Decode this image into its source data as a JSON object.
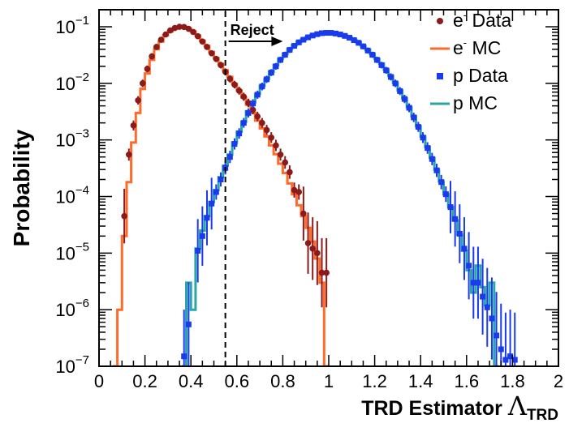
{
  "chart_data": {
    "type": "line",
    "title": "",
    "xlabel": {
      "main": "TRD Estimator ",
      "symbol": "Λ",
      "sub": "TRD"
    },
    "ylabel": "Probability",
    "xlim": [
      0,
      2
    ],
    "ylim": [
      1e-07,
      0.2
    ],
    "yscale": "log",
    "grid": false,
    "legend_position": "top-right",
    "x_ticks": [
      {
        "value": 0,
        "label": "0"
      },
      {
        "value": 0.2,
        "label": "0.2"
      },
      {
        "value": 0.4,
        "label": "0.4"
      },
      {
        "value": 0.6,
        "label": "0.6"
      },
      {
        "value": 0.8,
        "label": "0.8"
      },
      {
        "value": 1,
        "label": "1"
      },
      {
        "value": 1.2,
        "label": "1.2"
      },
      {
        "value": 1.4,
        "label": "1.4"
      },
      {
        "value": 1.6,
        "label": "1.6"
      },
      {
        "value": 1.8,
        "label": "1.8"
      },
      {
        "value": 2,
        "label": "2"
      }
    ],
    "y_ticks": [
      {
        "exp": -7,
        "base": "10",
        "sup": "−7"
      },
      {
        "exp": -6,
        "base": "10",
        "sup": "−6"
      },
      {
        "exp": -5,
        "base": "10",
        "sup": "−5"
      },
      {
        "exp": -4,
        "base": "10",
        "sup": "−4"
      },
      {
        "exp": -3,
        "base": "10",
        "sup": "−3"
      },
      {
        "exp": -2,
        "base": "10",
        "sup": "−2"
      },
      {
        "exp": -1,
        "base": "10",
        "sup": "−1"
      }
    ],
    "cut": {
      "x": 0.55,
      "label": "Reject",
      "arrow_to_x": 0.8
    },
    "colors": {
      "e_data": "#8b1a1a",
      "e_mc": "#ff6a2a",
      "p_data": "#1a3aee",
      "p_mc": "#2aa6a6"
    },
    "legend": [
      {
        "label_main": "e",
        "label_sup": "-",
        "label_rest": " Data",
        "style": "circle",
        "color": "#8b1a1a"
      },
      {
        "label_main": "e",
        "label_sup": "-",
        "label_rest": " MC",
        "style": "line",
        "color": "#ff6a2a"
      },
      {
        "label_main": "p Data",
        "label_sup": "",
        "label_rest": "",
        "style": "square",
        "color": "#1a3aee"
      },
      {
        "label_main": "p MC",
        "label_sup": "",
        "label_rest": "",
        "style": "line",
        "color": "#2aa6a6"
      }
    ],
    "series": [
      {
        "key": "e_mc",
        "kind": "step",
        "bin_width": 0.02,
        "points": [
          [
            0.07,
            1e-07
          ],
          [
            0.09,
            1e-06
          ],
          [
            0.11,
            2e-05
          ],
          [
            0.13,
            0.00018
          ],
          [
            0.15,
            0.0009
          ],
          [
            0.17,
            0.003
          ],
          [
            0.19,
            0.008
          ],
          [
            0.21,
            0.015
          ],
          [
            0.23,
            0.026
          ],
          [
            0.25,
            0.04
          ],
          [
            0.27,
            0.055
          ],
          [
            0.29,
            0.07
          ],
          [
            0.31,
            0.083
          ],
          [
            0.33,
            0.093
          ],
          [
            0.35,
            0.1
          ],
          [
            0.37,
            0.1
          ],
          [
            0.39,
            0.093
          ],
          [
            0.41,
            0.083
          ],
          [
            0.43,
            0.07
          ],
          [
            0.45,
            0.057
          ],
          [
            0.47,
            0.046
          ],
          [
            0.49,
            0.036
          ],
          [
            0.51,
            0.028
          ],
          [
            0.53,
            0.022
          ],
          [
            0.55,
            0.017
          ],
          [
            0.57,
            0.013
          ],
          [
            0.59,
            0.0098
          ],
          [
            0.61,
            0.0075
          ],
          [
            0.63,
            0.0056
          ],
          [
            0.65,
            0.0042
          ],
          [
            0.67,
            0.003
          ],
          [
            0.69,
            0.0022
          ],
          [
            0.71,
            0.0016
          ],
          [
            0.73,
            0.00115
          ],
          [
            0.75,
            0.0008
          ],
          [
            0.77,
            0.00056
          ],
          [
            0.79,
            0.00038
          ],
          [
            0.81,
            0.00026
          ],
          [
            0.83,
            0.00017
          ],
          [
            0.85,
            0.00011
          ],
          [
            0.87,
            7e-05
          ],
          [
            0.89,
            4.5e-05
          ],
          [
            0.91,
            2.8e-05
          ],
          [
            0.93,
            1.6e-05
          ],
          [
            0.95,
            8e-06
          ],
          [
            0.97,
            3e-06
          ],
          [
            0.99,
            1e-07
          ]
        ]
      },
      {
        "key": "p_mc",
        "kind": "step",
        "bin_width": 0.02,
        "points": [
          [
            0.37,
            1e-07
          ],
          [
            0.39,
            3e-06
          ],
          [
            0.41,
            1e-06
          ],
          [
            0.43,
            1.2e-05
          ],
          [
            0.45,
            2.5e-05
          ],
          [
            0.47,
            4.5e-05
          ],
          [
            0.49,
            8e-05
          ],
          [
            0.51,
            0.00013
          ],
          [
            0.53,
            0.00022
          ],
          [
            0.55,
            0.00035
          ],
          [
            0.57,
            0.00055
          ],
          [
            0.59,
            0.0009
          ],
          [
            0.61,
            0.0014
          ],
          [
            0.63,
            0.0021
          ],
          [
            0.65,
            0.0032
          ],
          [
            0.67,
            0.0046
          ],
          [
            0.69,
            0.0065
          ],
          [
            0.71,
            0.009
          ],
          [
            0.73,
            0.012
          ],
          [
            0.75,
            0.016
          ],
          [
            0.77,
            0.021
          ],
          [
            0.79,
            0.027
          ],
          [
            0.81,
            0.033
          ],
          [
            0.83,
            0.04
          ],
          [
            0.85,
            0.047
          ],
          [
            0.87,
            0.054
          ],
          [
            0.89,
            0.06
          ],
          [
            0.91,
            0.066
          ],
          [
            0.93,
            0.071
          ],
          [
            0.95,
            0.075
          ],
          [
            0.97,
            0.078
          ],
          [
            0.99,
            0.079
          ],
          [
            1.01,
            0.079
          ],
          [
            1.03,
            0.077
          ],
          [
            1.05,
            0.074
          ],
          [
            1.07,
            0.07
          ],
          [
            1.09,
            0.065
          ],
          [
            1.11,
            0.059
          ],
          [
            1.13,
            0.053
          ],
          [
            1.15,
            0.046
          ],
          [
            1.17,
            0.039
          ],
          [
            1.19,
            0.033
          ],
          [
            1.21,
            0.027
          ],
          [
            1.23,
            0.022
          ],
          [
            1.25,
            0.0175
          ],
          [
            1.27,
            0.0135
          ],
          [
            1.29,
            0.0102
          ],
          [
            1.31,
            0.0075
          ],
          [
            1.33,
            0.0054
          ],
          [
            1.35,
            0.0038
          ],
          [
            1.37,
            0.0026
          ],
          [
            1.39,
            0.00175
          ],
          [
            1.41,
            0.00115
          ],
          [
            1.43,
            0.00075
          ],
          [
            1.45,
            0.00048
          ],
          [
            1.47,
            0.0003
          ],
          [
            1.49,
            0.000185
          ],
          [
            1.51,
            0.00011
          ],
          [
            1.53,
            6.5e-05
          ],
          [
            1.55,
            3.8e-05
          ],
          [
            1.57,
            2.1e-05
          ],
          [
            1.59,
            1.1e-05
          ],
          [
            1.61,
            5e-06
          ],
          [
            1.63,
            2e-06
          ],
          [
            1.65,
            6e-06
          ],
          [
            1.67,
            2.5e-06
          ],
          [
            1.69,
            1.2e-06
          ],
          [
            1.71,
            3e-06
          ],
          [
            1.73,
            1e-07
          ]
        ]
      },
      {
        "key": "e_data",
        "kind": "points",
        "points": [
          [
            0.11,
            4.5e-05
          ],
          [
            0.13,
            0.00055
          ],
          [
            0.15,
            0.0018
          ],
          [
            0.17,
            0.005
          ],
          [
            0.19,
            0.01
          ],
          [
            0.21,
            0.018
          ],
          [
            0.23,
            0.03
          ],
          [
            0.25,
            0.044
          ],
          [
            0.27,
            0.059
          ],
          [
            0.29,
            0.073
          ],
          [
            0.31,
            0.086
          ],
          [
            0.33,
            0.095
          ],
          [
            0.35,
            0.1
          ],
          [
            0.37,
            0.099
          ],
          [
            0.39,
            0.092
          ],
          [
            0.41,
            0.081
          ],
          [
            0.43,
            0.068
          ],
          [
            0.45,
            0.055
          ],
          [
            0.47,
            0.044
          ],
          [
            0.49,
            0.034
          ],
          [
            0.51,
            0.027
          ],
          [
            0.53,
            0.021
          ],
          [
            0.55,
            0.016
          ],
          [
            0.57,
            0.012
          ],
          [
            0.59,
            0.0095
          ],
          [
            0.61,
            0.0074
          ],
          [
            0.63,
            0.0058
          ],
          [
            0.65,
            0.0045
          ],
          [
            0.67,
            0.0034
          ],
          [
            0.69,
            0.0026
          ],
          [
            0.71,
            0.002
          ],
          [
            0.73,
            0.0015
          ],
          [
            0.75,
            0.0011
          ],
          [
            0.77,
            0.0008
          ],
          [
            0.79,
            0.00055
          ],
          [
            0.81,
            0.0004
          ],
          [
            0.83,
            0.00027
          ],
          [
            0.85,
            0.00013
          ],
          [
            0.87,
            0.00012
          ],
          [
            0.89,
            5e-05
          ],
          [
            0.91,
            1.5e-05
          ],
          [
            0.93,
            1.2e-05
          ],
          [
            0.95,
            1e-05
          ],
          [
            0.97,
            4.5e-06
          ],
          [
            0.99,
            4.5e-06
          ]
        ]
      },
      {
        "key": "p_data",
        "kind": "points",
        "points": [
          [
            0.37,
            1.5e-07
          ],
          [
            0.39,
            5.5e-07
          ],
          [
            0.43,
            1.1e-05
          ],
          [
            0.45,
            2e-05
          ],
          [
            0.47,
            4.2e-05
          ],
          [
            0.49,
            7.5e-05
          ],
          [
            0.51,
            0.00012
          ],
          [
            0.53,
            0.0002
          ],
          [
            0.55,
            0.00032
          ],
          [
            0.57,
            0.0005
          ],
          [
            0.59,
            0.00085
          ],
          [
            0.61,
            0.0013
          ],
          [
            0.63,
            0.002
          ],
          [
            0.65,
            0.003
          ],
          [
            0.67,
            0.0044
          ],
          [
            0.69,
            0.0063
          ],
          [
            0.71,
            0.0088
          ],
          [
            0.73,
            0.0118
          ],
          [
            0.75,
            0.0155
          ],
          [
            0.77,
            0.02
          ],
          [
            0.79,
            0.026
          ],
          [
            0.81,
            0.032
          ],
          [
            0.83,
            0.039
          ],
          [
            0.85,
            0.046
          ],
          [
            0.87,
            0.053
          ],
          [
            0.89,
            0.059
          ],
          [
            0.91,
            0.065
          ],
          [
            0.93,
            0.07
          ],
          [
            0.95,
            0.074
          ],
          [
            0.97,
            0.077
          ],
          [
            0.99,
            0.078
          ],
          [
            1.01,
            0.078
          ],
          [
            1.03,
            0.076
          ],
          [
            1.05,
            0.073
          ],
          [
            1.07,
            0.069
          ],
          [
            1.09,
            0.064
          ],
          [
            1.11,
            0.058
          ],
          [
            1.13,
            0.052
          ],
          [
            1.15,
            0.045
          ],
          [
            1.17,
            0.038
          ],
          [
            1.19,
            0.032
          ],
          [
            1.21,
            0.026
          ],
          [
            1.23,
            0.021
          ],
          [
            1.25,
            0.017
          ],
          [
            1.27,
            0.013
          ],
          [
            1.29,
            0.01
          ],
          [
            1.31,
            0.0073
          ],
          [
            1.33,
            0.0053
          ],
          [
            1.35,
            0.0037
          ],
          [
            1.37,
            0.0025
          ],
          [
            1.39,
            0.0017
          ],
          [
            1.41,
            0.0011
          ],
          [
            1.43,
            0.00072
          ],
          [
            1.45,
            0.00046
          ],
          [
            1.47,
            0.00029
          ],
          [
            1.49,
            0.00018
          ],
          [
            1.51,
            0.00011
          ],
          [
            1.53,
            6.5e-05
          ],
          [
            1.55,
            4e-05
          ],
          [
            1.57,
            2.2e-05
          ],
          [
            1.59,
            1.2e-05
          ],
          [
            1.61,
            6e-06
          ],
          [
            1.63,
            3e-06
          ],
          [
            1.65,
            3e-06
          ],
          [
            1.67,
            1.7e-06
          ],
          [
            1.69,
            1.1e-06
          ],
          [
            1.71,
            7e-07
          ],
          [
            1.73,
            3.5e-07
          ],
          [
            1.75,
            2e-07
          ],
          [
            1.77,
            1.3e-07
          ],
          [
            1.79,
            1.5e-07
          ],
          [
            1.81,
            1.3e-07
          ]
        ]
      }
    ]
  }
}
